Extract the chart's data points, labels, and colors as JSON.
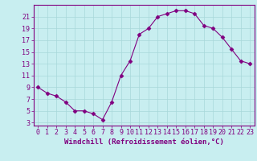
{
  "x": [
    0,
    1,
    2,
    3,
    4,
    5,
    6,
    7,
    8,
    9,
    10,
    11,
    12,
    13,
    14,
    15,
    16,
    17,
    18,
    19,
    20,
    21,
    22,
    23
  ],
  "y": [
    9,
    8,
    7.5,
    6.5,
    5,
    5,
    4.5,
    3.5,
    6.5,
    11,
    13.5,
    18,
    19,
    21,
    21.5,
    22,
    22,
    21.5,
    19.5,
    19,
    17.5,
    15.5,
    13.5,
    13
  ],
  "line_color": "#800080",
  "marker": "D",
  "marker_size": 2.5,
  "bg_color": "#c8eef0",
  "grid_color": "#a8d8da",
  "xlabel": "Windchill (Refroidissement éolien,°C)",
  "xlabel_fontsize": 6.5,
  "ylabel_ticks": [
    3,
    5,
    7,
    9,
    11,
    13,
    15,
    17,
    19,
    21
  ],
  "xticks": [
    0,
    1,
    2,
    3,
    4,
    5,
    6,
    7,
    8,
    9,
    10,
    11,
    12,
    13,
    14,
    15,
    16,
    17,
    18,
    19,
    20,
    21,
    22,
    23
  ],
  "ylim": [
    2.5,
    23.0
  ],
  "xlim": [
    -0.5,
    23.5
  ],
  "tick_fontsize": 6.0,
  "tick_color": "#800080",
  "spine_color": "#800080"
}
